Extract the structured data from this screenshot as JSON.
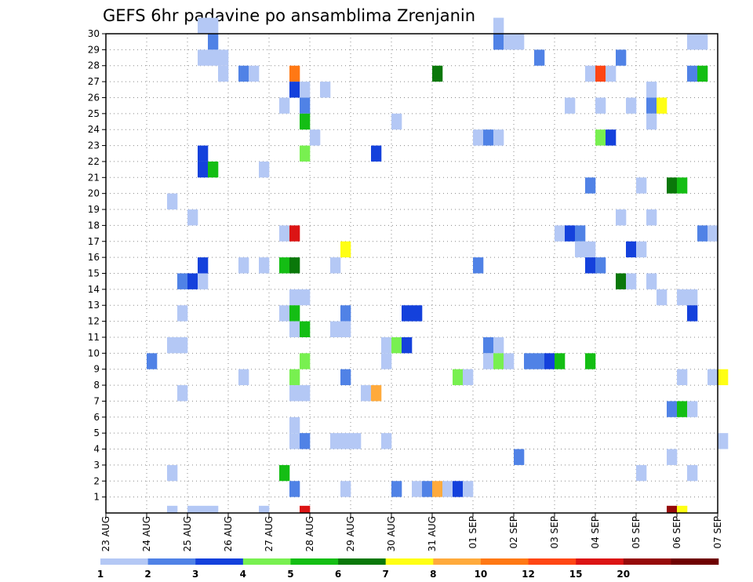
{
  "chart_data": {
    "type": "heatmap",
    "title": "GEFS 6hr padavine po ansamblima Zrenjanin",
    "xlabel": "",
    "ylabel": "",
    "grid": true,
    "x_ticks": [
      "23 AUG",
      "24 AUG",
      "25 AUG",
      "26 AUG",
      "27 AUG",
      "28 AUG",
      "29 AUG",
      "30 AUG",
      "31 AUG",
      "01 SEP",
      "02 SEP",
      "03 SEP",
      "04 SEP",
      "05 SEP",
      "06 SEP",
      "07 SEP"
    ],
    "y_ticks": [
      "1",
      "2",
      "3",
      "4",
      "5",
      "6",
      "7",
      "8",
      "9",
      "10",
      "11",
      "12",
      "13",
      "14",
      "15",
      "16",
      "17",
      "18",
      "19",
      "20",
      "21",
      "22",
      "23",
      "24",
      "25",
      "26",
      "27",
      "28",
      "29",
      "30"
    ],
    "x_range": [
      "23 AUG 00Z",
      "07 SEP 00Z"
    ],
    "y_range": [
      0,
      30
    ],
    "time_step_hours": 6,
    "legend": {
      "placement": "bottom",
      "bins": [
        {
          "label": "1",
          "color": "#b4c8f5"
        },
        {
          "label": "2",
          "color": "#5082e6"
        },
        {
          "label": "3",
          "color": "#1441dc"
        },
        {
          "label": "4",
          "color": "#78f050"
        },
        {
          "label": "5",
          "color": "#14be14"
        },
        {
          "label": "6",
          "color": "#0a780a"
        },
        {
          "label": "7",
          "color": "#ffff14"
        },
        {
          "label": "8",
          "color": "#ffaa3c"
        },
        {
          "label": "10",
          "color": "#ff7814"
        },
        {
          "label": "12",
          "color": "#ff4614"
        },
        {
          "label": "15",
          "color": "#dc1414"
        },
        {
          "label": "20",
          "color": "#960a0a"
        },
        {
          "label": "",
          "color": "#6e0000"
        }
      ]
    },
    "cells": [
      {
        "t": 9,
        "m": 30,
        "c": 0
      },
      {
        "t": 10,
        "m": 30,
        "c": 0
      },
      {
        "t": 38,
        "m": 30,
        "c": 0
      },
      {
        "t": 10,
        "m": 29,
        "c": 1
      },
      {
        "t": 38,
        "m": 29,
        "c": 1
      },
      {
        "t": 39,
        "m": 29,
        "c": 0
      },
      {
        "t": 40,
        "m": 29,
        "c": 0
      },
      {
        "t": 57,
        "m": 29,
        "c": 0
      },
      {
        "t": 58,
        "m": 29,
        "c": 0
      },
      {
        "t": 9,
        "m": 28,
        "c": 0
      },
      {
        "t": 10,
        "m": 28,
        "c": 0
      },
      {
        "t": 11,
        "m": 28,
        "c": 0
      },
      {
        "t": 42,
        "m": 28,
        "c": 1
      },
      {
        "t": 50,
        "m": 28,
        "c": 1
      },
      {
        "t": 11,
        "m": 27,
        "c": 0
      },
      {
        "t": 13,
        "m": 27,
        "c": 1
      },
      {
        "t": 14,
        "m": 27,
        "c": 0
      },
      {
        "t": 18,
        "m": 27,
        "c": 8
      },
      {
        "t": 32,
        "m": 27,
        "c": 5
      },
      {
        "t": 47,
        "m": 27,
        "c": 0
      },
      {
        "t": 48,
        "m": 27,
        "c": 9
      },
      {
        "t": 49,
        "m": 27,
        "c": 0
      },
      {
        "t": 57,
        "m": 27,
        "c": 1
      },
      {
        "t": 58,
        "m": 27,
        "c": 4
      },
      {
        "t": 18,
        "m": 26,
        "c": 2
      },
      {
        "t": 19,
        "m": 26,
        "c": 0
      },
      {
        "t": 21,
        "m": 26,
        "c": 0
      },
      {
        "t": 53,
        "m": 26,
        "c": 0
      },
      {
        "t": 17,
        "m": 25,
        "c": 0
      },
      {
        "t": 19,
        "m": 25,
        "c": 1
      },
      {
        "t": 45,
        "m": 25,
        "c": 0
      },
      {
        "t": 48,
        "m": 25,
        "c": 0
      },
      {
        "t": 51,
        "m": 25,
        "c": 0
      },
      {
        "t": 53,
        "m": 25,
        "c": 1
      },
      {
        "t": 54,
        "m": 25,
        "c": 6
      },
      {
        "t": 19,
        "m": 24,
        "c": 4
      },
      {
        "t": 28,
        "m": 24,
        "c": 0
      },
      {
        "t": 53,
        "m": 24,
        "c": 0
      },
      {
        "t": 20,
        "m": 23,
        "c": 0
      },
      {
        "t": 36,
        "m": 23,
        "c": 0
      },
      {
        "t": 37,
        "m": 23,
        "c": 1
      },
      {
        "t": 38,
        "m": 23,
        "c": 0
      },
      {
        "t": 48,
        "m": 23,
        "c": 3
      },
      {
        "t": 49,
        "m": 23,
        "c": 2
      },
      {
        "t": 9,
        "m": 22,
        "c": 2
      },
      {
        "t": 19,
        "m": 22,
        "c": 3
      },
      {
        "t": 26,
        "m": 22,
        "c": 2
      },
      {
        "t": 9,
        "m": 21,
        "c": 2
      },
      {
        "t": 10,
        "m": 21,
        "c": 4
      },
      {
        "t": 15,
        "m": 21,
        "c": 0
      },
      {
        "t": 52,
        "m": 20,
        "c": 0
      },
      {
        "t": 55,
        "m": 20,
        "c": 5
      },
      {
        "t": 56,
        "m": 20,
        "c": 4
      },
      {
        "t": 47,
        "m": 20,
        "c": 1
      },
      {
        "t": 6,
        "m": 19,
        "c": 0
      },
      {
        "t": 8,
        "m": 18,
        "c": 0
      },
      {
        "t": 50,
        "m": 18,
        "c": 0
      },
      {
        "t": 53,
        "m": 18,
        "c": 0
      },
      {
        "t": 17,
        "m": 17,
        "c": 0
      },
      {
        "t": 18,
        "m": 17,
        "c": 10
      },
      {
        "t": 44,
        "m": 17,
        "c": 0
      },
      {
        "t": 45,
        "m": 17,
        "c": 2
      },
      {
        "t": 46,
        "m": 17,
        "c": 1
      },
      {
        "t": 58,
        "m": 17,
        "c": 1
      },
      {
        "t": 59,
        "m": 17,
        "c": 0
      },
      {
        "t": 23,
        "m": 16,
        "c": 6
      },
      {
        "t": 46,
        "m": 16,
        "c": 0
      },
      {
        "t": 47,
        "m": 16,
        "c": 0
      },
      {
        "t": 51,
        "m": 16,
        "c": 2
      },
      {
        "t": 52,
        "m": 16,
        "c": 0
      },
      {
        "t": 9,
        "m": 15,
        "c": 2
      },
      {
        "t": 13,
        "m": 15,
        "c": 0
      },
      {
        "t": 15,
        "m": 15,
        "c": 0
      },
      {
        "t": 17,
        "m": 15,
        "c": 4
      },
      {
        "t": 18,
        "m": 15,
        "c": 5
      },
      {
        "t": 22,
        "m": 15,
        "c": 0
      },
      {
        "t": 36,
        "m": 15,
        "c": 1
      },
      {
        "t": 47,
        "m": 15,
        "c": 2
      },
      {
        "t": 48,
        "m": 15,
        "c": 1
      },
      {
        "t": 7,
        "m": 14,
        "c": 1
      },
      {
        "t": 8,
        "m": 14,
        "c": 2
      },
      {
        "t": 9,
        "m": 14,
        "c": 0
      },
      {
        "t": 50,
        "m": 14,
        "c": 5
      },
      {
        "t": 51,
        "m": 14,
        "c": 0
      },
      {
        "t": 53,
        "m": 14,
        "c": 0
      },
      {
        "t": 18,
        "m": 13,
        "c": 0
      },
      {
        "t": 19,
        "m": 13,
        "c": 0
      },
      {
        "t": 54,
        "m": 13,
        "c": 0
      },
      {
        "t": 56,
        "m": 13,
        "c": 0
      },
      {
        "t": 57,
        "m": 13,
        "c": 0
      },
      {
        "t": 7,
        "m": 12,
        "c": 0
      },
      {
        "t": 17,
        "m": 12,
        "c": 0
      },
      {
        "t": 18,
        "m": 12,
        "c": 4
      },
      {
        "t": 23,
        "m": 12,
        "c": 1
      },
      {
        "t": 29,
        "m": 12,
        "c": 2
      },
      {
        "t": 30,
        "m": 12,
        "c": 2
      },
      {
        "t": 57,
        "m": 12,
        "c": 2
      },
      {
        "t": 18,
        "m": 11,
        "c": 0
      },
      {
        "t": 19,
        "m": 11,
        "c": 4
      },
      {
        "t": 22,
        "m": 11,
        "c": 0
      },
      {
        "t": 23,
        "m": 11,
        "c": 0
      },
      {
        "t": 6,
        "m": 10,
        "c": 0
      },
      {
        "t": 7,
        "m": 10,
        "c": 0
      },
      {
        "t": 27,
        "m": 10,
        "c": 0
      },
      {
        "t": 28,
        "m": 10,
        "c": 3
      },
      {
        "t": 29,
        "m": 10,
        "c": 2
      },
      {
        "t": 37,
        "m": 10,
        "c": 1
      },
      {
        "t": 38,
        "m": 10,
        "c": 0
      },
      {
        "t": 4,
        "m": 9,
        "c": 1
      },
      {
        "t": 19,
        "m": 9,
        "c": 3
      },
      {
        "t": 27,
        "m": 9,
        "c": 0
      },
      {
        "t": 37,
        "m": 9,
        "c": 0
      },
      {
        "t": 38,
        "m": 9,
        "c": 3
      },
      {
        "t": 39,
        "m": 9,
        "c": 0
      },
      {
        "t": 41,
        "m": 9,
        "c": 1
      },
      {
        "t": 42,
        "m": 9,
        "c": 1
      },
      {
        "t": 43,
        "m": 9,
        "c": 2
      },
      {
        "t": 44,
        "m": 9,
        "c": 4
      },
      {
        "t": 47,
        "m": 9,
        "c": 4
      },
      {
        "t": 13,
        "m": 8,
        "c": 0
      },
      {
        "t": 18,
        "m": 8,
        "c": 3
      },
      {
        "t": 23,
        "m": 8,
        "c": 1
      },
      {
        "t": 34,
        "m": 8,
        "c": 3
      },
      {
        "t": 35,
        "m": 8,
        "c": 0
      },
      {
        "t": 56,
        "m": 8,
        "c": 0
      },
      {
        "t": 59,
        "m": 8,
        "c": 0
      },
      {
        "t": 60,
        "m": 8,
        "c": 6
      },
      {
        "t": 7,
        "m": 7,
        "c": 0
      },
      {
        "t": 18,
        "m": 7,
        "c": 0
      },
      {
        "t": 19,
        "m": 7,
        "c": 0
      },
      {
        "t": 25,
        "m": 7,
        "c": 0
      },
      {
        "t": 26,
        "m": 7,
        "c": 7
      },
      {
        "t": 55,
        "m": 6,
        "c": 1
      },
      {
        "t": 56,
        "m": 6,
        "c": 4
      },
      {
        "t": 57,
        "m": 6,
        "c": 0
      },
      {
        "t": 18,
        "m": 5,
        "c": 0
      },
      {
        "t": 18,
        "m": 4,
        "c": 0
      },
      {
        "t": 19,
        "m": 4,
        "c": 1
      },
      {
        "t": 22,
        "m": 4,
        "c": 0
      },
      {
        "t": 23,
        "m": 4,
        "c": 0
      },
      {
        "t": 24,
        "m": 4,
        "c": 0
      },
      {
        "t": 27,
        "m": 4,
        "c": 0
      },
      {
        "t": 60,
        "m": 4,
        "c": 0
      },
      {
        "t": 40,
        "m": 3,
        "c": 1
      },
      {
        "t": 55,
        "m": 3,
        "c": 0
      },
      {
        "t": 6,
        "m": 2,
        "c": 0
      },
      {
        "t": 17,
        "m": 2,
        "c": 4
      },
      {
        "t": 52,
        "m": 2,
        "c": 0
      },
      {
        "t": 57,
        "m": 2,
        "c": 0
      },
      {
        "t": 18,
        "m": 1,
        "c": 1
      },
      {
        "t": 23,
        "m": 1,
        "c": 0
      },
      {
        "t": 28,
        "m": 1,
        "c": 1
      },
      {
        "t": 30,
        "m": 1,
        "c": 0
      },
      {
        "t": 31,
        "m": 1,
        "c": 1
      },
      {
        "t": 32,
        "m": 1,
        "c": 7
      },
      {
        "t": 33,
        "m": 1,
        "c": 0
      },
      {
        "t": 34,
        "m": 1,
        "c": 2
      },
      {
        "t": 35,
        "m": 1,
        "c": 0
      },
      {
        "t": 6,
        "m": 0,
        "c": 0
      },
      {
        "t": 8,
        "m": 0,
        "c": 0
      },
      {
        "t": 9,
        "m": 0,
        "c": 0
      },
      {
        "t": 10,
        "m": 0,
        "c": 0
      },
      {
        "t": 15,
        "m": 0,
        "c": 0
      },
      {
        "t": 19,
        "m": 0,
        "c": 10
      },
      {
        "t": 55,
        "m": 0,
        "c": 11
      },
      {
        "t": 56,
        "m": 0,
        "c": 6
      }
    ]
  }
}
